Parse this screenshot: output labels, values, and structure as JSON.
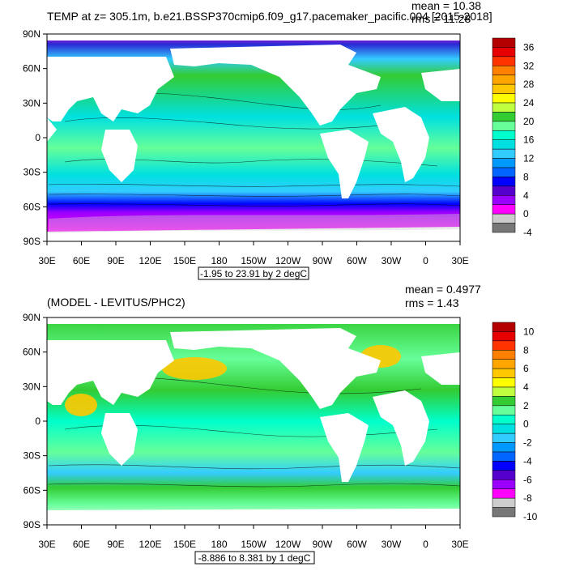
{
  "panels": [
    {
      "title": "TEMP at z= 305.1m, b.e21.BSSP370cmip6.f09_g17.pacemaker_pacific.004 [2015-2018]",
      "mean": "mean = 10.38",
      "rms": "rms = 11.28",
      "range": "-1.95 to 23.91 by 2 degC",
      "lat_labels": [
        "90N",
        "60N",
        "30N",
        "0",
        "30S",
        "60S",
        "90S"
      ],
      "lon_labels": [
        "30E",
        "60E",
        "90E",
        "120E",
        "150E",
        "180",
        "150W",
        "120W",
        "90W",
        "60W",
        "30W",
        "0",
        "30E"
      ],
      "colorbar_labels": [
        "36",
        "32",
        "28",
        "24",
        "20",
        "16",
        "12",
        "8",
        "4",
        "0",
        "-4"
      ],
      "colors": [
        "#b40000",
        "#e60000",
        "#ff3300",
        "#ff7f00",
        "#ffa500",
        "#ffc800",
        "#ffff00",
        "#bfff40",
        "#33cc33",
        "#66ff99",
        "#00ffcc",
        "#00e0e0",
        "#33ccff",
        "#0099ff",
        "#0066ff",
        "#0000ff",
        "#5500cc",
        "#9900ff",
        "#ff00ff",
        "#cccccc",
        "#777777"
      ]
    },
    {
      "title": "(MODEL - LEVITUS/PHC2)",
      "mean": "mean = 0.4977",
      "rms": "rms = 1.43",
      "range": "-8.886 to 8.381 by 1 degC",
      "lat_labels": [
        "90N",
        "60N",
        "30N",
        "0",
        "30S",
        "60S",
        "90S"
      ],
      "lon_labels": [
        "30E",
        "60E",
        "90E",
        "120E",
        "150E",
        "180",
        "150W",
        "120W",
        "90W",
        "60W",
        "30W",
        "0",
        "30E"
      ],
      "colorbar_labels": [
        "10",
        "8",
        "6",
        "4",
        "2",
        "0",
        "-2",
        "-4",
        "-6",
        "-8",
        "-10"
      ],
      "colors": [
        "#b40000",
        "#e60000",
        "#ff3300",
        "#ff7f00",
        "#ffa500",
        "#ffc800",
        "#ffff00",
        "#bfff40",
        "#33cc33",
        "#66ff99",
        "#00ffcc",
        "#00e0e0",
        "#33ccff",
        "#0099ff",
        "#0066ff",
        "#0000ff",
        "#5500cc",
        "#9900ff",
        "#ff00ff",
        "#cccccc",
        "#777777"
      ]
    }
  ]
}
